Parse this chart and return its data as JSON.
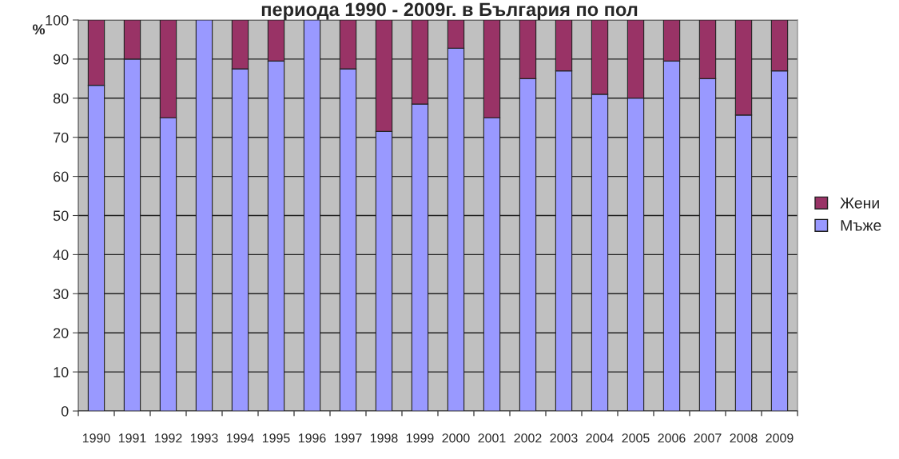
{
  "chart_data": {
    "type": "bar",
    "title": "периода 1990 - 2009г. в България по пол",
    "ylabel": "%",
    "categories": [
      "1990",
      "1991",
      "1992",
      "1993",
      "1994",
      "1995",
      "1996",
      "1997",
      "1998",
      "1999",
      "2000",
      "2001",
      "2002",
      "2003",
      "2004",
      "2005",
      "2006",
      "2007",
      "2008",
      "2009"
    ],
    "stacked": true,
    "series": [
      {
        "name": "Мъже",
        "color": "#9999ff",
        "values": [
          83.3,
          90,
          75,
          100,
          87.5,
          89.5,
          100,
          87.5,
          71.5,
          78.5,
          92.8,
          75,
          85,
          87,
          81,
          80,
          89.5,
          85,
          75.7,
          87
        ]
      },
      {
        "name": "Жени",
        "color": "#993366",
        "values": [
          16.7,
          10,
          25,
          0,
          12.5,
          10.5,
          0,
          12.5,
          28.5,
          21.5,
          7.2,
          25,
          15,
          13,
          19,
          20,
          10.5,
          15,
          24.3,
          13
        ]
      }
    ],
    "ylim": [
      0,
      100
    ],
    "yticks": [
      0,
      10,
      20,
      30,
      40,
      50,
      60,
      70,
      80,
      90,
      100
    ],
    "grid": "y",
    "legend": "right"
  }
}
